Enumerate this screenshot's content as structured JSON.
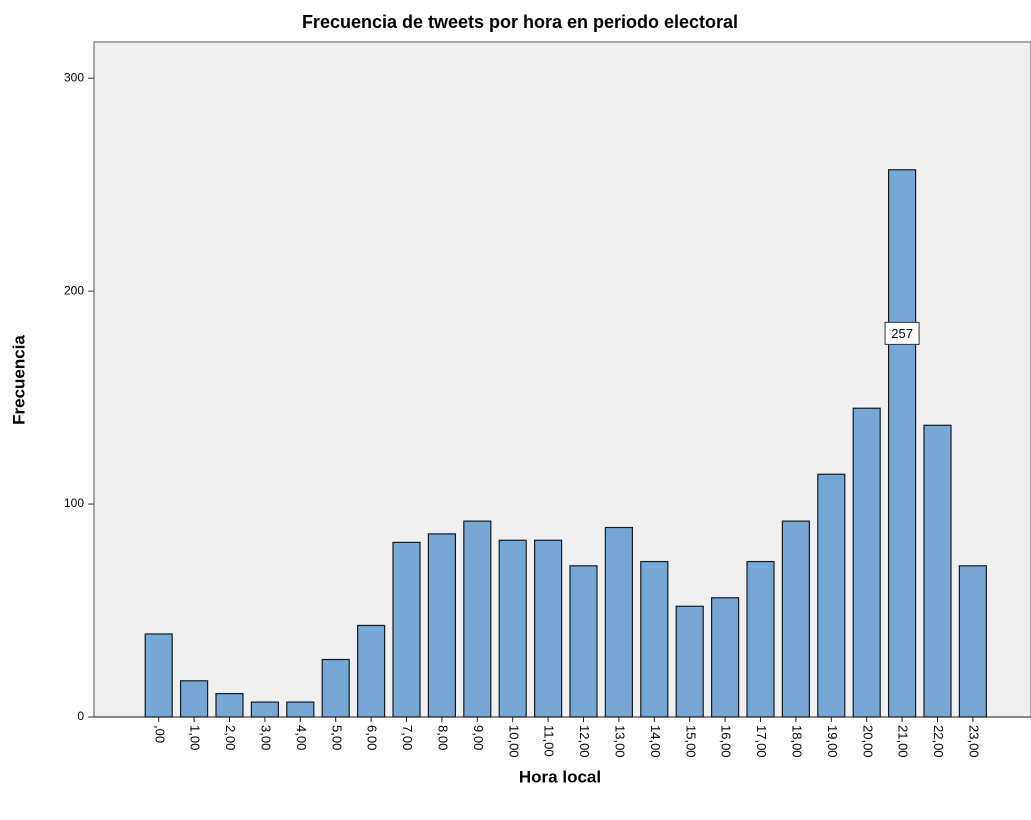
{
  "chart_data": {
    "type": "bar",
    "title": "Frecuencia de tweets por hora en periodo electoral",
    "x_label": "Hora local",
    "y_label": "Frecuencia",
    "categories": [
      ",00",
      "1,00",
      "2,00",
      "3,00",
      "4,00",
      "5,00",
      "6,00",
      "7,00",
      "8,00",
      "9,00",
      "10,00",
      "11,00",
      "12,00",
      "13,00",
      "14,00",
      "15,00",
      "16,00",
      "17,00",
      "18,00",
      "19,00",
      "20,00",
      "21,00",
      "22,00",
      "23,00"
    ],
    "values": [
      39,
      17,
      11,
      7,
      7,
      27,
      43,
      82,
      86,
      92,
      83,
      83,
      71,
      89,
      73,
      52,
      56,
      73,
      92,
      114,
      145,
      257,
      137,
      71
    ],
    "value_labels": [
      null,
      null,
      null,
      null,
      null,
      null,
      null,
      null,
      null,
      null,
      null,
      null,
      null,
      null,
      null,
      null,
      null,
      null,
      null,
      null,
      null,
      "257",
      null,
      null
    ],
    "color": "#77a7d6",
    "ylim": [
      0,
      317
    ],
    "yticks": [
      0,
      100,
      200,
      300
    ],
    "grid": false
  }
}
